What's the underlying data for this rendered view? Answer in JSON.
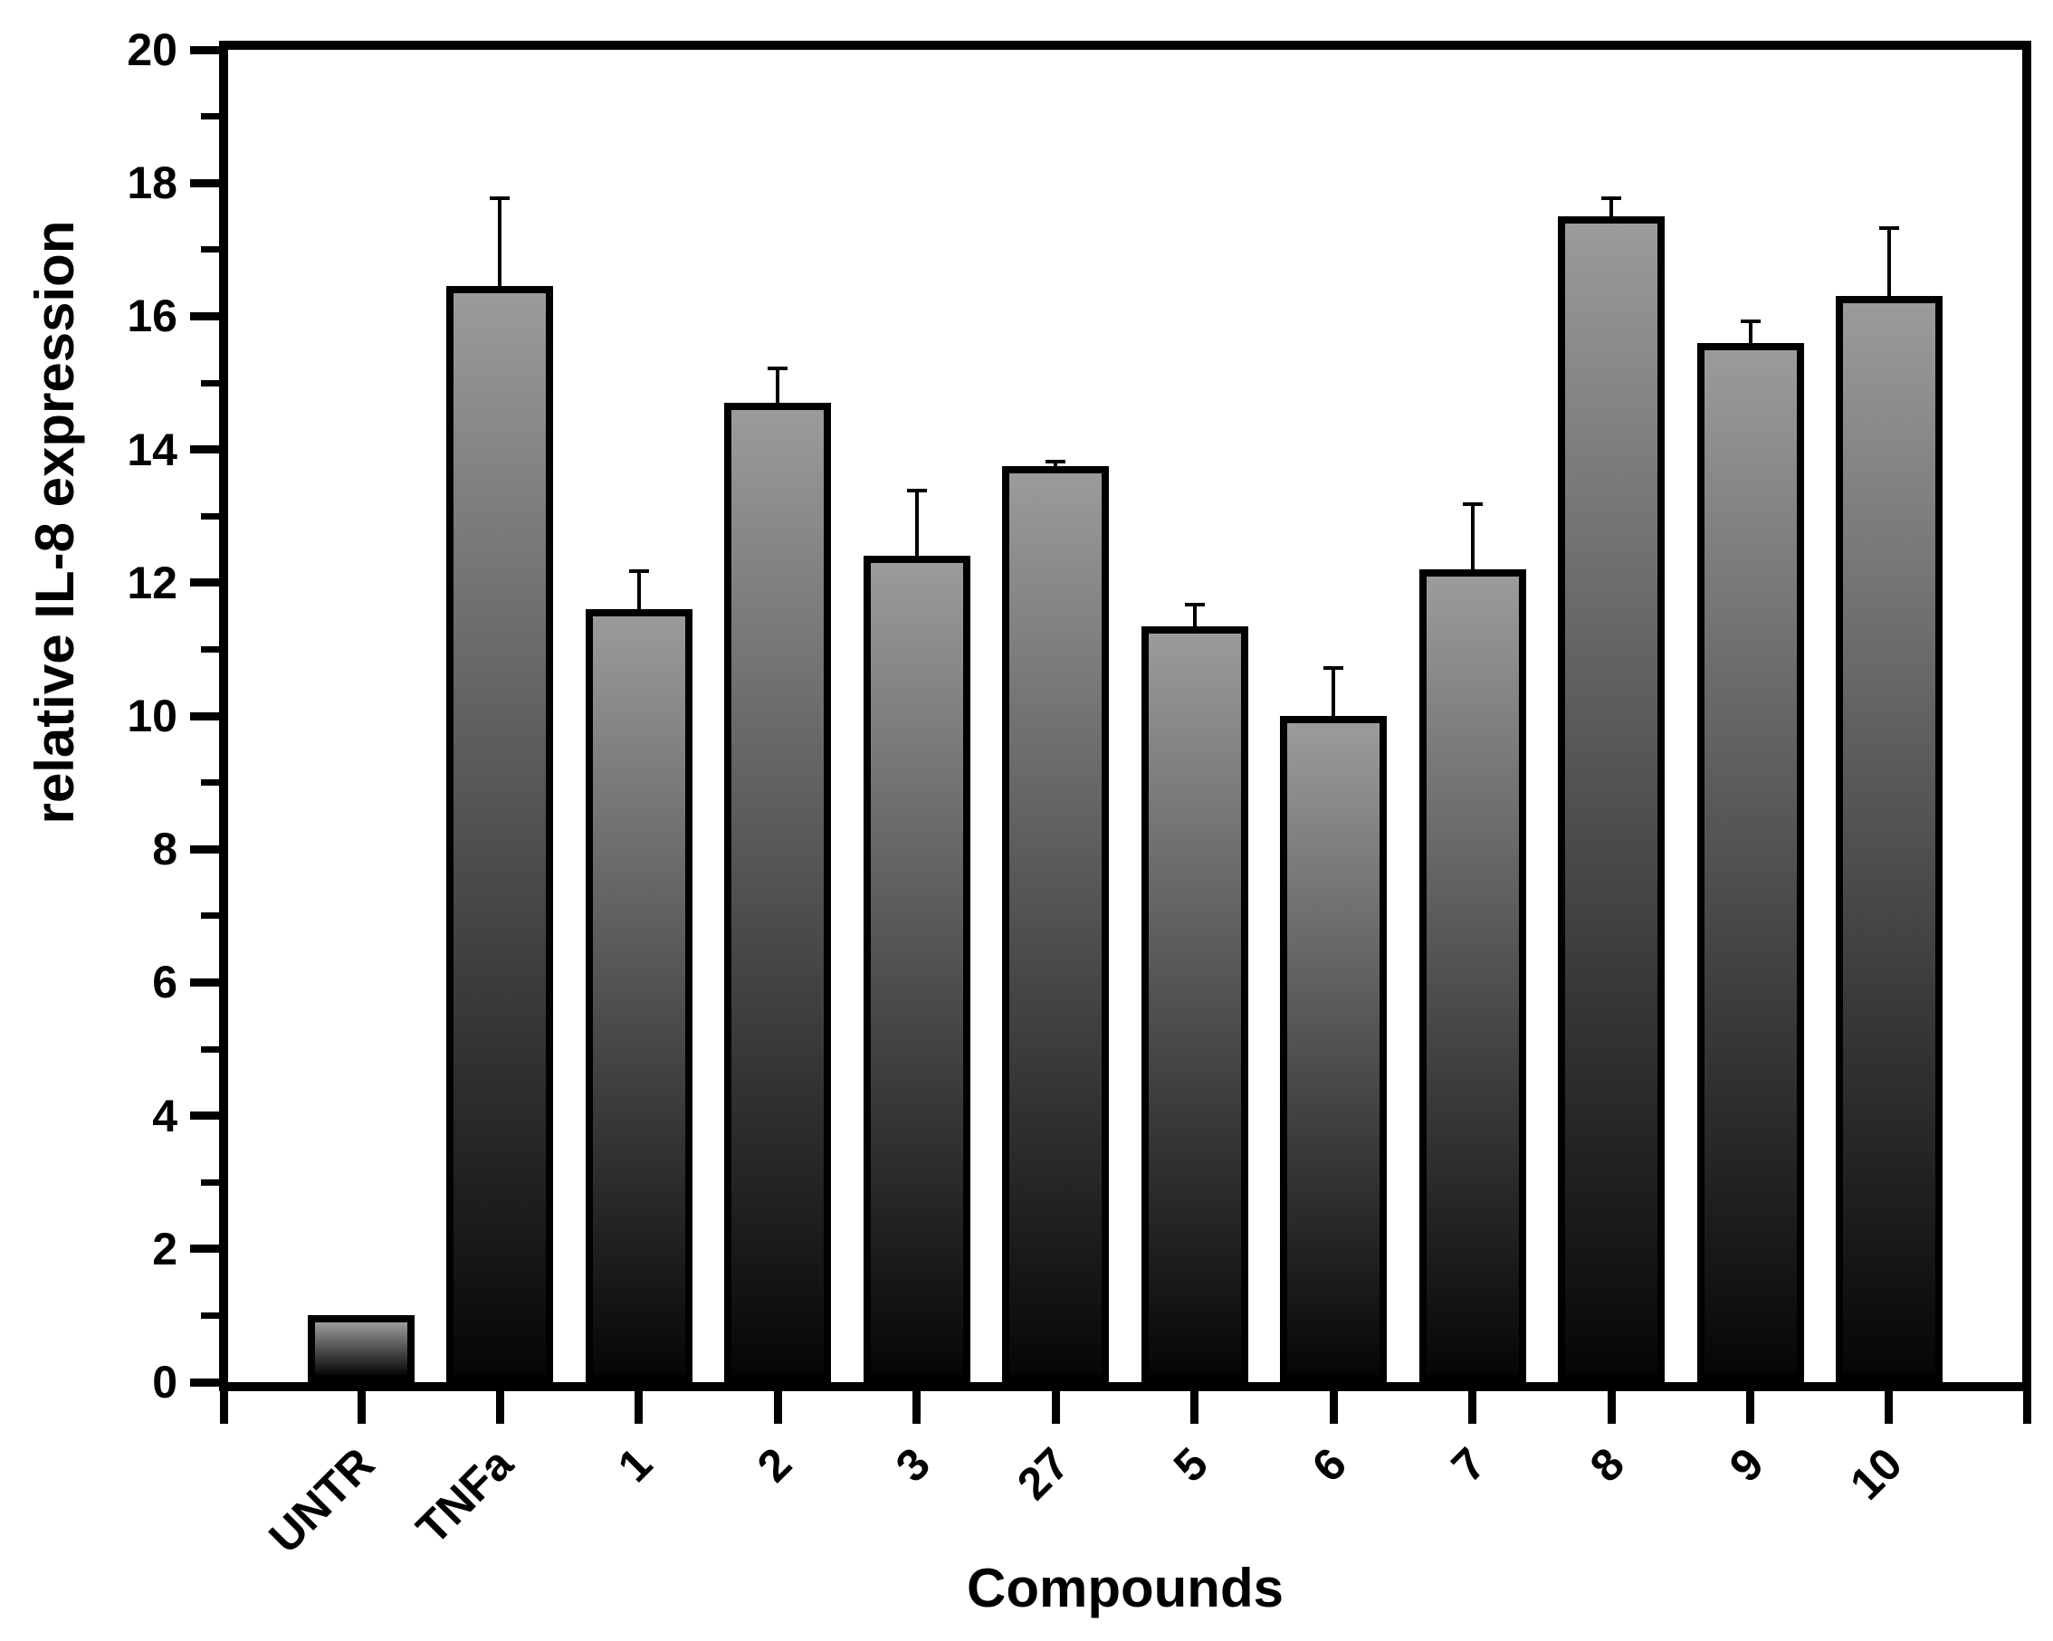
{
  "chart_data": {
    "type": "bar",
    "title": "",
    "xlabel": "Compounds",
    "ylabel": "relative IL-8 expression",
    "categories": [
      "UNTR",
      "TNFa",
      "1",
      "2",
      "3",
      "27",
      "5",
      "6",
      "7",
      "8",
      "9",
      "10"
    ],
    "values": [
      1.0,
      16.45,
      11.6,
      14.7,
      12.4,
      13.75,
      11.35,
      10.0,
      12.2,
      17.5,
      15.6,
      16.3
    ],
    "errors": [
      0,
      1.35,
      0.6,
      0.55,
      1.0,
      0.1,
      0.35,
      0.75,
      1.0,
      0.3,
      0.35,
      1.05
    ],
    "error_direction": "plus-only",
    "ylim": [
      0,
      20
    ],
    "y_major_step": 2,
    "y_minor_step": 1,
    "grid": "off",
    "legend": "none",
    "bar_fill_top": "#9b9b9b",
    "bar_fill_bottom": "#060606",
    "bar_border_color": "#000000",
    "axis_color": "#000000",
    "background_color": "#ffffff"
  }
}
